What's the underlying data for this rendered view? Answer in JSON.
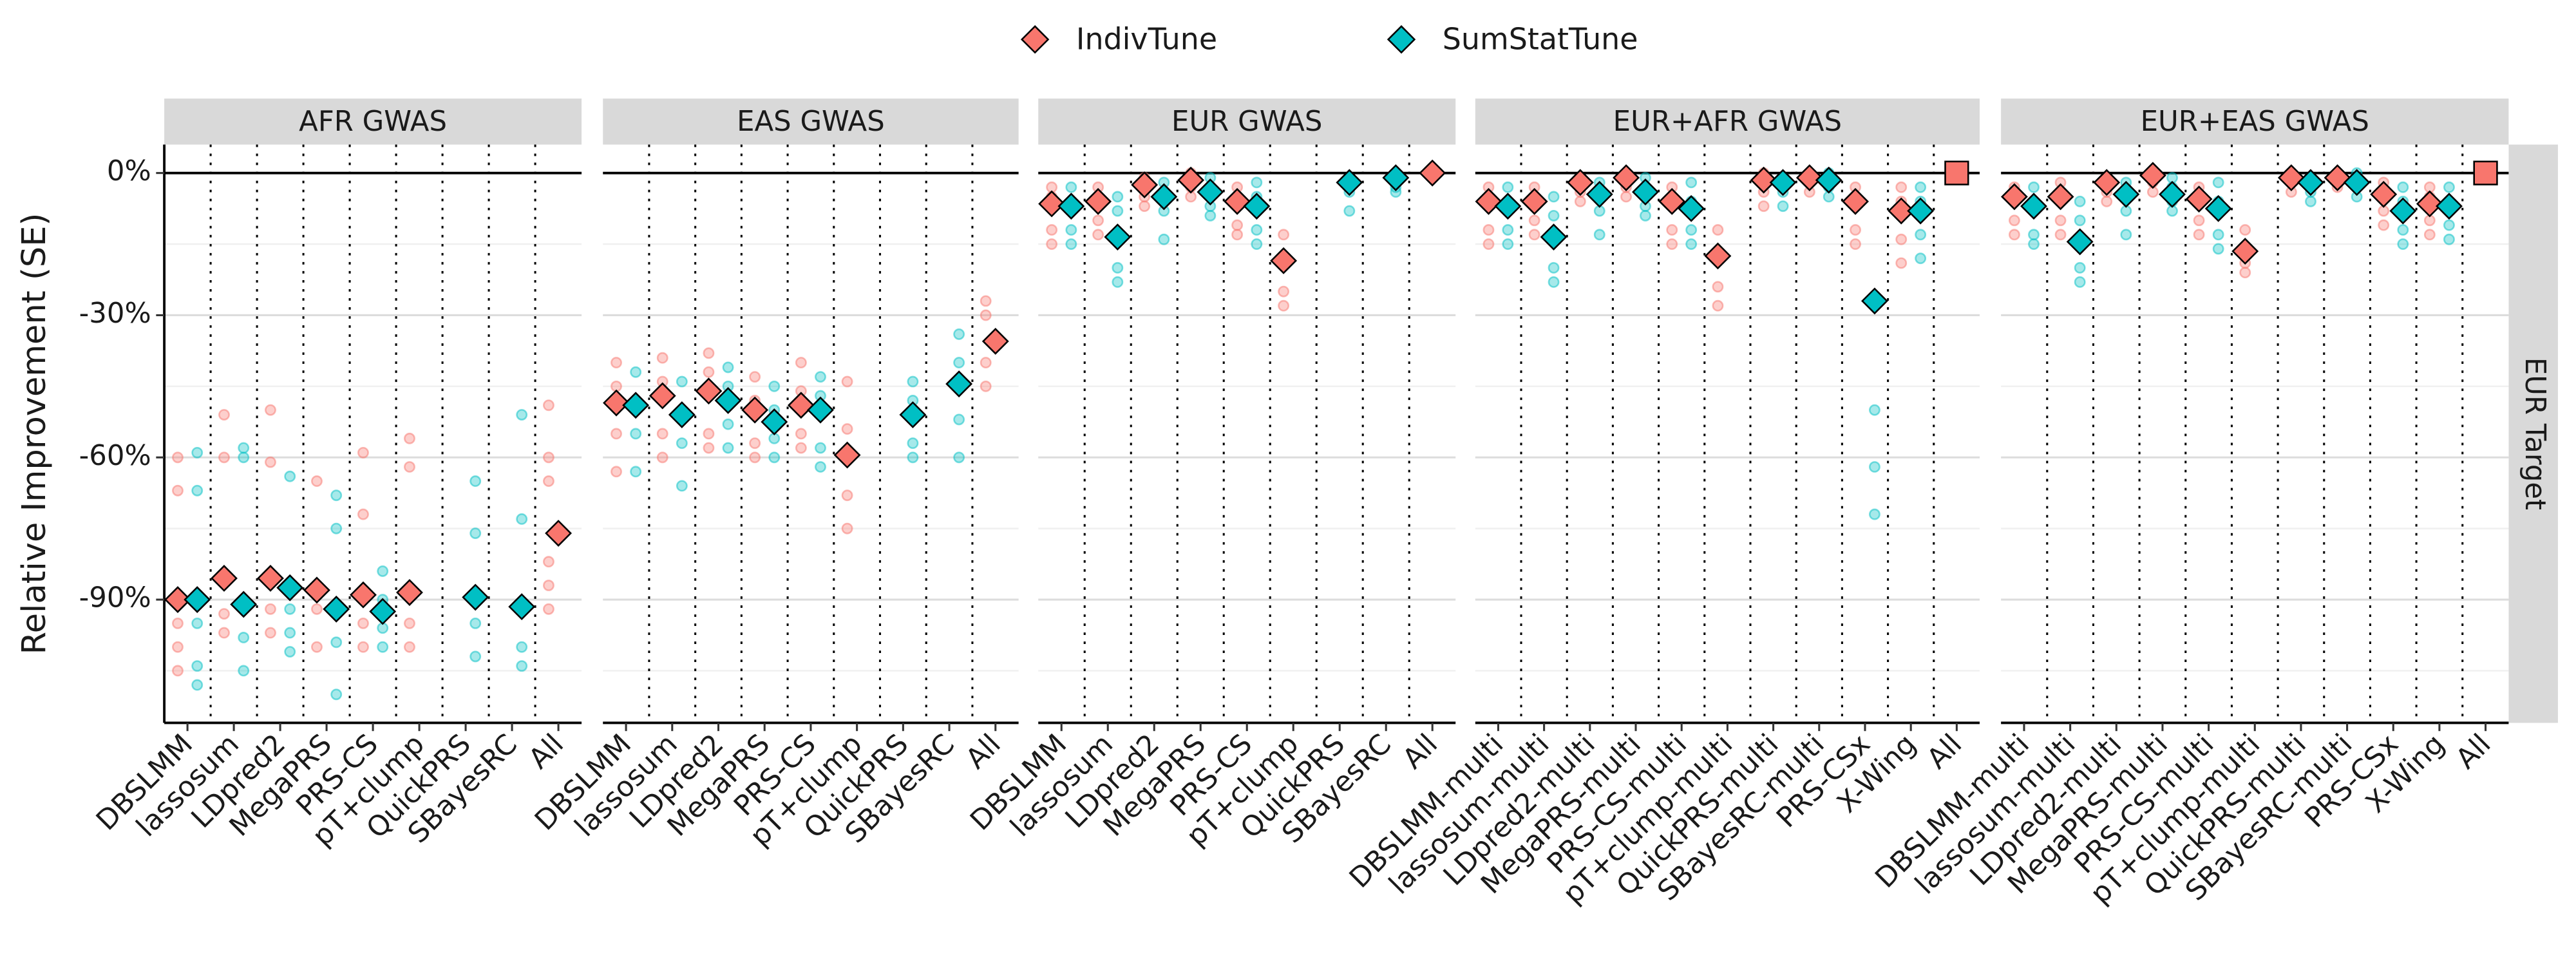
{
  "y_label": "Relative Improvement (SE)",
  "strip_right": "EUR Target",
  "legend_position": "top",
  "chart_data": [
    {
      "type": "scatter",
      "title": "AFR GWAS",
      "categories": [
        "DBSLMM",
        "lassosum",
        "LDpred2",
        "MegaPRS",
        "PRS-CS",
        "pT+clump",
        "QuickPRS",
        "SBayesRC",
        "All"
      ],
      "ylim": [
        -116,
        6
      ],
      "yticks": [
        {
          "value": 0,
          "label": "0%"
        },
        {
          "value": -30,
          "label": "-30%"
        },
        {
          "value": -60,
          "label": "-60%"
        },
        {
          "value": -90,
          "label": "-90%"
        }
      ],
      "minor_yticks": [
        -15,
        -45,
        -75,
        -105
      ],
      "grid": true,
      "series": [
        {
          "name": "IndivTune",
          "color": "#F8766D",
          "values": [
            -90,
            -85.5,
            -85.5,
            -88,
            -89,
            -88.5,
            null,
            null,
            -76
          ],
          "points": [
            [
              -60,
              -67,
              -95,
              -100,
              -105
            ],
            [
              -51,
              -60,
              -93,
              -97
            ],
            [
              -50,
              -61,
              -92,
              -97
            ],
            [
              -65,
              -92,
              -100
            ],
            [
              -59,
              -72,
              -95,
              -100
            ],
            [
              -56,
              -62,
              -95,
              -100
            ],
            null,
            null,
            [
              -49,
              -60,
              -65,
              -82,
              -87,
              -92
            ]
          ]
        },
        {
          "name": "SumStatTune",
          "color": "#00BFC4",
          "values": [
            -90,
            -91,
            -87.5,
            -92,
            -92.5,
            null,
            -89.5,
            -91.5,
            null
          ],
          "points": [
            [
              -59,
              -67,
              -95,
              -104,
              -108
            ],
            [
              -58,
              -60,
              -98,
              -105
            ],
            [
              -64,
              -92,
              -97,
              -101
            ],
            [
              -68,
              -75,
              -99,
              -110
            ],
            [
              -84,
              -90,
              -96,
              -100
            ],
            null,
            [
              -65,
              -76,
              -95,
              -102
            ],
            [
              -51,
              -73,
              -100,
              -104
            ],
            null
          ]
        }
      ]
    },
    {
      "type": "scatter",
      "title": "EAS GWAS",
      "categories": [
        "DBSLMM",
        "lassosum",
        "LDpred2",
        "MegaPRS",
        "PRS-CS",
        "pT+clump",
        "QuickPRS",
        "SBayesRC",
        "All"
      ],
      "ylim": [
        -116,
        6
      ],
      "minor_yticks": [
        -15,
        -45,
        -75,
        -105
      ],
      "grid": true,
      "series": [
        {
          "name": "IndivTune",
          "color": "#F8766D",
          "values": [
            -48.5,
            -47,
            -46,
            -50,
            -49,
            -59.5,
            null,
            null,
            -35.5
          ],
          "points": [
            [
              -40,
              -45,
              -55,
              -63
            ],
            [
              -39,
              -44,
              -55,
              -60
            ],
            [
              -38,
              -42,
              -55,
              -58
            ],
            [
              -43,
              -48,
              -57,
              -60
            ],
            [
              -40,
              -46,
              -55,
              -58
            ],
            [
              -44,
              -54,
              -68,
              -75
            ],
            null,
            null,
            [
              -27,
              -30,
              -40,
              -45
            ]
          ]
        },
        {
          "name": "SumStatTune",
          "color": "#00BFC4",
          "values": [
            -49,
            -51,
            -48,
            -52.5,
            -50,
            null,
            -51,
            -44.5,
            null
          ],
          "points": [
            [
              -42,
              -48,
              -55,
              -63
            ],
            [
              -44,
              -50,
              -57,
              -66
            ],
            [
              -41,
              -45,
              -53,
              -58
            ],
            [
              -45,
              -50,
              -56,
              -60
            ],
            [
              -43,
              -47,
              -58,
              -62
            ],
            null,
            [
              -44,
              -48,
              -57,
              -60
            ],
            [
              -34,
              -40,
              -52,
              -60
            ],
            null
          ]
        }
      ]
    },
    {
      "type": "scatter",
      "title": "EUR GWAS",
      "categories": [
        "DBSLMM",
        "lassosum",
        "LDpred2",
        "MegaPRS",
        "PRS-CS",
        "pT+clump",
        "QuickPRS",
        "SBayesRC",
        "All"
      ],
      "ylim": [
        -116,
        6
      ],
      "minor_yticks": [
        -15,
        -45,
        -75,
        -105
      ],
      "grid": true,
      "series": [
        {
          "name": "IndivTune",
          "color": "#F8766D",
          "values": [
            -6.5,
            -6,
            -2.5,
            -1.5,
            -6,
            -18.5,
            null,
            null,
            0
          ],
          "points": [
            [
              -3,
              -5,
              -12,
              -15
            ],
            [
              -3,
              -5,
              -10,
              -13
            ],
            [
              -1,
              -2,
              -5,
              -7
            ],
            [
              0,
              -1,
              -3,
              -5
            ],
            [
              -3,
              -5,
              -11,
              -13
            ],
            [
              -13,
              -18,
              -25,
              -28
            ],
            null,
            null,
            null
          ]
        },
        {
          "name": "SumStatTune",
          "color": "#00BFC4",
          "values": [
            -7,
            -13.5,
            -5,
            -4,
            -7,
            null,
            -2,
            -1,
            null
          ],
          "points": [
            [
              -3,
              -6,
              -12,
              -15
            ],
            [
              -5,
              -8,
              -20,
              -23
            ],
            [
              -2,
              -5,
              -8,
              -14
            ],
            [
              -1,
              -3,
              -7,
              -9
            ],
            [
              -2,
              -5,
              -12,
              -15
            ],
            null,
            [
              -1,
              -2,
              -4,
              -8
            ],
            [
              0,
              -1,
              -3,
              -4
            ],
            null
          ]
        }
      ]
    },
    {
      "type": "scatter",
      "title": "EUR+AFR GWAS",
      "all_shape": "square",
      "categories": [
        "DBSLMM-multi",
        "lassosum-multi",
        "LDpred2-multi",
        "MegaPRS-multi",
        "PRS-CS-multi",
        "pT+clump-multi",
        "QuickPRS-multi",
        "SBayesRC-multi",
        "PRS-CSx",
        "X-Wing",
        "All"
      ],
      "ylim": [
        -116,
        6
      ],
      "minor_yticks": [
        -15,
        -45,
        -75,
        -105
      ],
      "grid": true,
      "series": [
        {
          "name": "IndivTune",
          "color": "#F8766D",
          "values": [
            -6,
            -6,
            -2,
            -1,
            -6,
            -17.5,
            -1.5,
            -1,
            -6,
            -8,
            0
          ],
          "points": [
            [
              -3,
              -5,
              -12,
              -15
            ],
            [
              -3,
              -6,
              -10,
              -13
            ],
            [
              -1,
              -2,
              -4,
              -6
            ],
            [
              0,
              -1,
              -3,
              -5
            ],
            [
              -3,
              -5,
              -12,
              -15
            ],
            [
              -12,
              -17,
              -24,
              -28
            ],
            [
              0,
              -1,
              -4,
              -7
            ],
            [
              0,
              -1,
              -2,
              -4
            ],
            [
              -3,
              -5,
              -12,
              -15
            ],
            [
              -3,
              -6,
              -14,
              -19
            ],
            null
          ]
        },
        {
          "name": "SumStatTune",
          "color": "#00BFC4",
          "values": [
            -7,
            -13.5,
            -4.5,
            -4,
            -7.5,
            null,
            -2,
            -1.5,
            -27,
            -8,
            null
          ],
          "points": [
            [
              -3,
              -6,
              -12,
              -15
            ],
            [
              -5,
              -9,
              -20,
              -23
            ],
            [
              -2,
              -4,
              -8,
              -13
            ],
            [
              -1,
              -3,
              -7,
              -9
            ],
            [
              -2,
              -6,
              -12,
              -15
            ],
            null,
            [
              -1,
              -2,
              -4,
              -7
            ],
            [
              0,
              -1,
              -3,
              -5
            ],
            [
              -50,
              -62,
              -72
            ],
            [
              -3,
              -6,
              -13,
              -18
            ],
            null
          ]
        }
      ]
    },
    {
      "type": "scatter",
      "title": "EUR+EAS GWAS",
      "all_shape": "square",
      "categories": [
        "DBSLMM-multi",
        "lassosum-multi",
        "LDpred2-multi",
        "MegaPRS-multi",
        "PRS-CS-multi",
        "pT+clump-multi",
        "QuickPRS-multi",
        "SBayesRC-multi",
        "PRS-CSx",
        "X-Wing",
        "All"
      ],
      "ylim": [
        -116,
        6
      ],
      "minor_yticks": [
        -15,
        -45,
        -75,
        -105
      ],
      "grid": true,
      "series": [
        {
          "name": "IndivTune",
          "color": "#F8766D",
          "values": [
            -5,
            -5,
            -2,
            -0.5,
            -5.5,
            -16.5,
            -1,
            -1,
            -4.5,
            -6.5,
            0
          ],
          "points": [
            [
              -3,
              -5,
              -10,
              -13
            ],
            [
              -2,
              -5,
              -10,
              -13
            ],
            [
              -1,
              -2,
              -4,
              -6
            ],
            [
              0,
              -1,
              -2,
              -4
            ],
            [
              -3,
              -5,
              -10,
              -13
            ],
            [
              -12,
              -16,
              -19,
              -21
            ],
            [
              0,
              -1,
              -2,
              -4
            ],
            [
              0,
              -1,
              -2,
              -3
            ],
            [
              -2,
              -4,
              -8,
              -11
            ],
            [
              -3,
              -5,
              -10,
              -13
            ],
            null
          ]
        },
        {
          "name": "SumStatTune",
          "color": "#00BFC4",
          "values": [
            -7,
            -14.5,
            -4.5,
            -4.5,
            -7.5,
            null,
            -2,
            -2,
            -8,
            -7,
            null
          ],
          "points": [
            [
              -3,
              -6,
              -13,
              -15
            ],
            [
              -6,
              -10,
              -20,
              -23
            ],
            [
              -2,
              -4,
              -8,
              -13
            ],
            [
              -1,
              -3,
              -6,
              -8
            ],
            [
              -2,
              -6,
              -13,
              -16
            ],
            null,
            [
              -1,
              -2,
              -4,
              -6
            ],
            [
              0,
              -1,
              -3,
              -5
            ],
            [
              -3,
              -6,
              -12,
              -15
            ],
            [
              -3,
              -6,
              -11,
              -14
            ],
            null
          ]
        }
      ]
    }
  ]
}
